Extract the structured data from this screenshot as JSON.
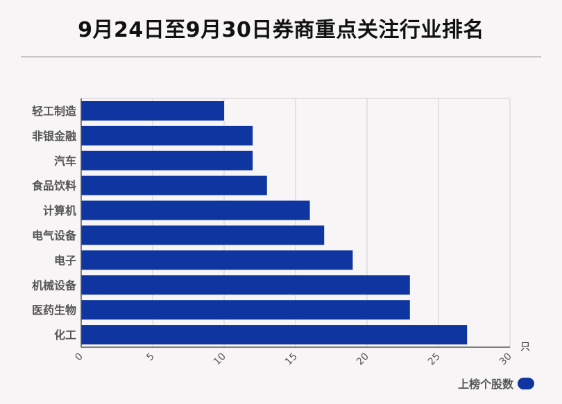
{
  "title": "9月24日至9月30日券商重点关注行业排名",
  "colors": {
    "bar": "#0f36a0",
    "grid": "#d0d0d0",
    "axis": "#555555"
  },
  "chart_data": {
    "type": "bar",
    "orientation": "horizontal",
    "categories": [
      "轻工制造",
      "非银金融",
      "汽车",
      "食品饮料",
      "计算机",
      "电气设备",
      "电子",
      "机械设备",
      "医药生物",
      "化工"
    ],
    "series": [
      {
        "name": "上榜个股数",
        "values": [
          10,
          12,
          12,
          13,
          16,
          17,
          19,
          23,
          23,
          27
        ]
      }
    ],
    "xlim": [
      0,
      30
    ],
    "xticks": [
      0,
      5,
      10,
      15,
      20,
      25,
      30
    ],
    "xunit": "只",
    "grid": true,
    "legend_position": "bottom-right"
  }
}
